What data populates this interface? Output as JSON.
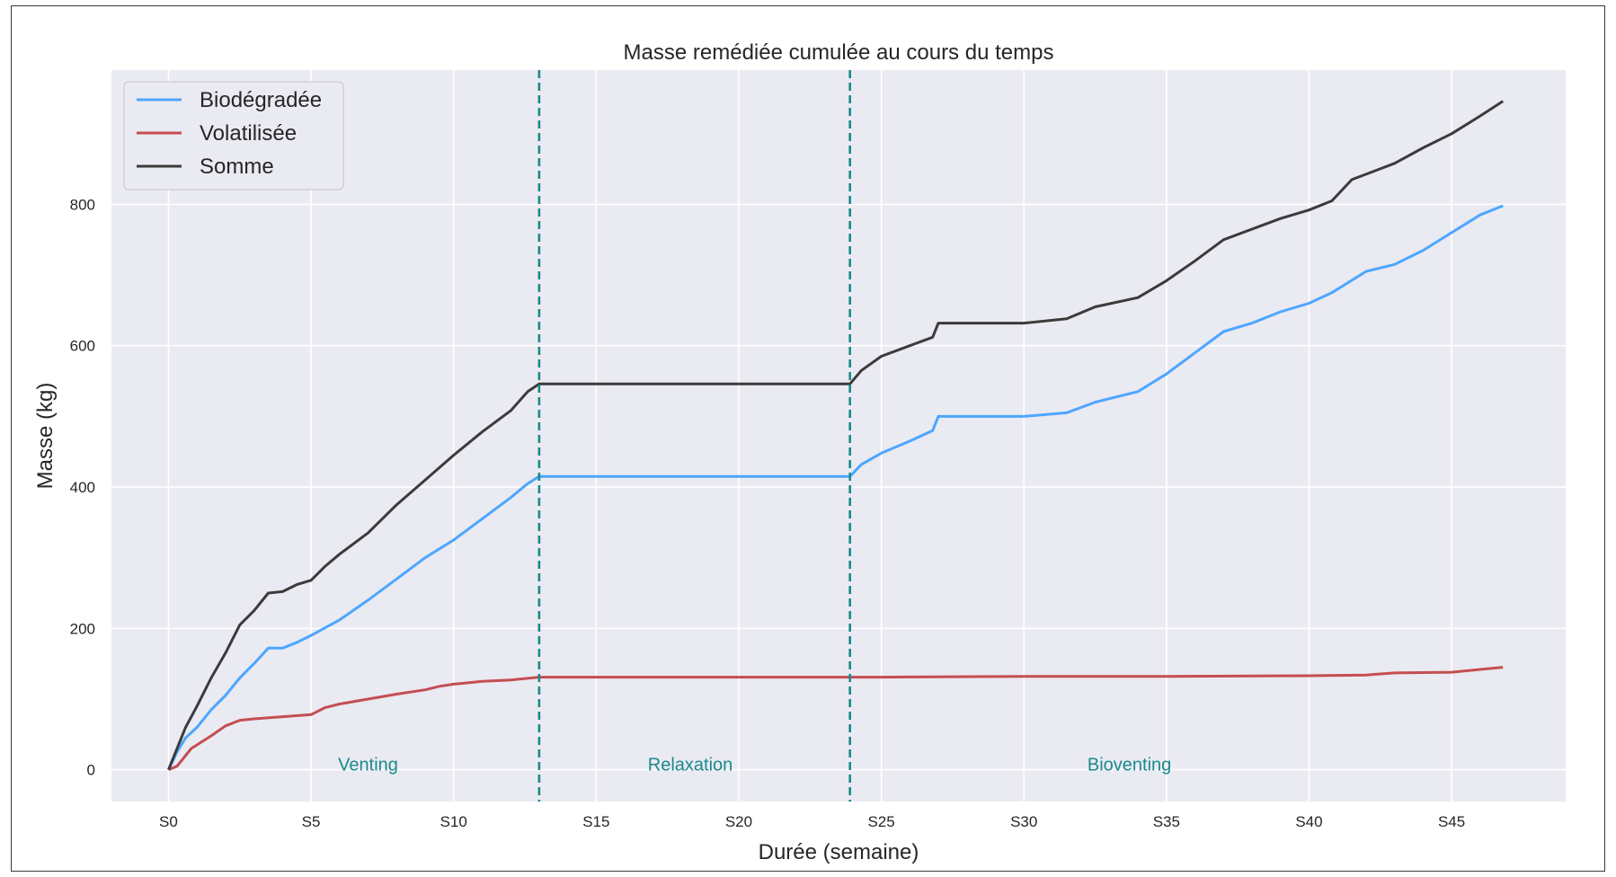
{
  "chart_data": {
    "type": "line",
    "title": "Masse remédiée cumulée au cours du temps",
    "xlabel": "Durée (semaine)",
    "ylabel": "Masse (kg)",
    "xlim": [
      -2,
      49
    ],
    "ylim": [
      -45,
      990
    ],
    "x_ticks": [
      0,
      5,
      10,
      15,
      20,
      25,
      30,
      35,
      40,
      45
    ],
    "x_tick_labels": [
      "S0",
      "S5",
      "S10",
      "S15",
      "S20",
      "S25",
      "S30",
      "S35",
      "S40",
      "S45"
    ],
    "y_ticks": [
      0,
      200,
      400,
      600,
      800
    ],
    "y_tick_labels": [
      "0",
      "200",
      "400",
      "600",
      "800"
    ],
    "grid": true,
    "legend": "top-left",
    "phase_boundaries": [
      13,
      23.9
    ],
    "phase_color": "#1a8a8a",
    "phases": [
      {
        "label": "Venting",
        "x": 7
      },
      {
        "label": "Relaxation",
        "x": 18.3
      },
      {
        "label": "Bioventing",
        "x": 33.7
      }
    ],
    "series": [
      {
        "name": "Biodégradée",
        "color": "#4da6ff",
        "points": [
          [
            0,
            0
          ],
          [
            0.3,
            25
          ],
          [
            0.6,
            45
          ],
          [
            1,
            60
          ],
          [
            1.5,
            85
          ],
          [
            2,
            105
          ],
          [
            2.5,
            130
          ],
          [
            3,
            150
          ],
          [
            3.5,
            172
          ],
          [
            4,
            172
          ],
          [
            4.5,
            180
          ],
          [
            5,
            190
          ],
          [
            6,
            212
          ],
          [
            7,
            240
          ],
          [
            8,
            270
          ],
          [
            9,
            300
          ],
          [
            10,
            325
          ],
          [
            11,
            355
          ],
          [
            12,
            385
          ],
          [
            12.6,
            405
          ],
          [
            13,
            415
          ],
          [
            18,
            415
          ],
          [
            23.9,
            415
          ],
          [
            24.3,
            432
          ],
          [
            25,
            448
          ],
          [
            26,
            465
          ],
          [
            26.8,
            480
          ],
          [
            27,
            500
          ],
          [
            30,
            500
          ],
          [
            31.5,
            505
          ],
          [
            32.5,
            520
          ],
          [
            34,
            535
          ],
          [
            35,
            560
          ],
          [
            36,
            590
          ],
          [
            37,
            620
          ],
          [
            38,
            632
          ],
          [
            39,
            648
          ],
          [
            40,
            660
          ],
          [
            40.8,
            675
          ],
          [
            42,
            705
          ],
          [
            43,
            715
          ],
          [
            44,
            735
          ],
          [
            45,
            760
          ],
          [
            46,
            785
          ],
          [
            46.8,
            798
          ]
        ]
      },
      {
        "name": "Volatilisée",
        "color": "#c44e52",
        "points": [
          [
            0,
            0
          ],
          [
            0.3,
            5
          ],
          [
            0.8,
            30
          ],
          [
            1.5,
            48
          ],
          [
            2,
            62
          ],
          [
            2.5,
            70
          ],
          [
            3,
            72
          ],
          [
            4,
            75
          ],
          [
            5,
            78
          ],
          [
            5.5,
            88
          ],
          [
            6,
            93
          ],
          [
            7,
            100
          ],
          [
            8,
            107
          ],
          [
            9,
            113
          ],
          [
            9.5,
            118
          ],
          [
            10,
            121
          ],
          [
            11,
            125
          ],
          [
            12,
            127
          ],
          [
            13,
            131
          ],
          [
            20,
            131
          ],
          [
            25,
            131
          ],
          [
            30,
            132
          ],
          [
            35,
            132
          ],
          [
            40,
            133
          ],
          [
            42,
            134
          ],
          [
            43,
            137
          ],
          [
            45,
            138
          ],
          [
            46.8,
            145
          ]
        ]
      },
      {
        "name": "Somme",
        "color": "#3b3b3b",
        "points": [
          [
            0,
            0
          ],
          [
            0.3,
            30
          ],
          [
            0.6,
            60
          ],
          [
            1,
            90
          ],
          [
            1.5,
            130
          ],
          [
            2,
            165
          ],
          [
            2.5,
            205
          ],
          [
            3,
            225
          ],
          [
            3.5,
            250
          ],
          [
            4,
            252
          ],
          [
            4.5,
            262
          ],
          [
            5,
            268
          ],
          [
            5.5,
            288
          ],
          [
            6,
            305
          ],
          [
            7,
            335
          ],
          [
            8,
            375
          ],
          [
            9,
            410
          ],
          [
            10,
            445
          ],
          [
            11,
            478
          ],
          [
            12,
            508
          ],
          [
            12.6,
            535
          ],
          [
            13,
            546
          ],
          [
            18,
            546
          ],
          [
            23.9,
            546
          ],
          [
            24.3,
            565
          ],
          [
            25,
            585
          ],
          [
            26,
            600
          ],
          [
            26.8,
            612
          ],
          [
            27,
            632
          ],
          [
            30,
            632
          ],
          [
            31.5,
            638
          ],
          [
            32.5,
            655
          ],
          [
            34,
            668
          ],
          [
            35,
            692
          ],
          [
            36,
            720
          ],
          [
            37,
            750
          ],
          [
            38,
            765
          ],
          [
            39,
            780
          ],
          [
            40,
            792
          ],
          [
            40.8,
            805
          ],
          [
            41.5,
            835
          ],
          [
            43,
            858
          ],
          [
            44,
            880
          ],
          [
            45,
            900
          ],
          [
            46,
            925
          ],
          [
            46.8,
            946
          ]
        ]
      }
    ]
  }
}
